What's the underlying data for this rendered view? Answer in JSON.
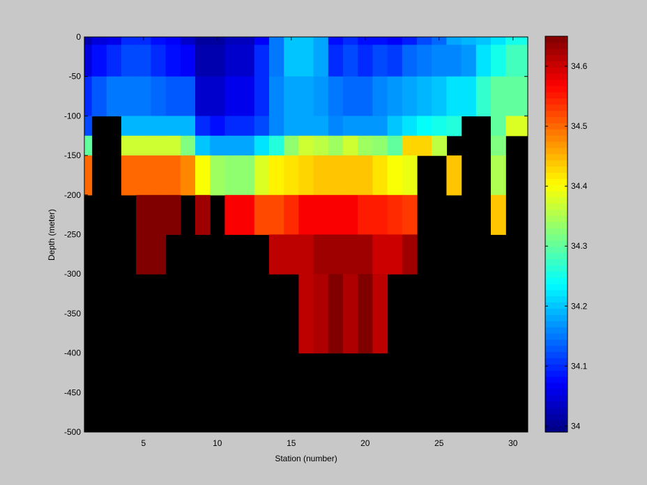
{
  "chart_data": {
    "type": "heatmap",
    "title": "",
    "xlabel": "Station (number)",
    "ylabel": "Depth (meter)",
    "xlim": [
      1,
      31
    ],
    "ylim": [
      -500,
      0
    ],
    "x_ticks": [
      5,
      10,
      15,
      20,
      25,
      30
    ],
    "y_ticks": [
      0,
      -50,
      -100,
      -150,
      -200,
      -250,
      -300,
      -350,
      -400,
      -450,
      -500
    ],
    "stations": [
      1,
      2,
      3,
      4,
      5,
      6,
      7,
      8,
      9,
      10,
      11,
      12,
      13,
      14,
      15,
      16,
      17,
      18,
      19,
      20,
      21,
      22,
      23,
      24,
      25,
      26,
      27,
      28,
      29,
      30
    ],
    "depths": [
      -5,
      -25,
      -75,
      -125,
      -175,
      -225,
      -275,
      -325,
      -375
    ],
    "background_color": "#000000",
    "colorbar": {
      "range": [
        33.99,
        34.65
      ],
      "ticks": [
        34,
        34.1,
        34.2,
        34.3,
        34.4,
        34.5,
        34.6
      ],
      "colormap": "jet-like"
    },
    "values": [
      [
        34.02,
        34.05,
        34.06,
        34.1,
        34.1,
        34.08,
        34.07,
        34.04,
        34.01,
        34.01,
        34.03,
        34.03,
        34.07,
        34.15,
        34.2,
        34.2,
        34.18,
        34.08,
        34.1,
        34.08,
        34.08,
        34.07,
        34.09,
        34.12,
        34.14,
        34.18,
        34.19,
        34.2,
        34.22,
        34.25
      ],
      [
        34.05,
        34.08,
        34.1,
        34.12,
        34.12,
        34.1,
        34.08,
        34.07,
        34.02,
        34.02,
        34.04,
        34.04,
        34.1,
        34.15,
        34.2,
        34.2,
        34.18,
        34.1,
        34.12,
        34.1,
        34.12,
        34.11,
        34.14,
        34.15,
        34.16,
        34.16,
        34.17,
        34.22,
        34.25,
        34.28
      ],
      [
        34.1,
        34.13,
        34.15,
        34.15,
        34.15,
        34.14,
        34.13,
        34.13,
        34.04,
        34.04,
        34.06,
        34.06,
        34.1,
        34.16,
        34.18,
        34.18,
        34.17,
        34.15,
        34.14,
        34.14,
        34.16,
        34.17,
        34.18,
        34.19,
        34.2,
        34.22,
        34.22,
        34.27,
        34.3,
        34.3
      ],
      [
        34.12,
        null,
        null,
        34.19,
        34.19,
        34.19,
        34.19,
        34.19,
        34.1,
        34.08,
        34.1,
        34.1,
        34.12,
        34.16,
        34.18,
        34.18,
        34.18,
        34.16,
        34.17,
        34.17,
        34.17,
        34.2,
        34.22,
        34.24,
        34.25,
        34.26,
        null,
        null,
        34.3,
        34.38
      ],
      [
        34.3,
        null,
        null,
        34.37,
        34.37,
        34.37,
        34.37,
        34.32,
        34.2,
        34.18,
        34.18,
        34.18,
        34.22,
        34.26,
        34.33,
        34.37,
        34.36,
        34.34,
        34.37,
        34.34,
        34.33,
        34.3,
        34.43,
        34.43,
        34.36,
        null,
        null,
        null,
        34.32,
        null
      ],
      [
        34.5,
        null,
        null,
        34.5,
        34.5,
        34.5,
        34.5,
        34.48,
        34.4,
        34.34,
        34.33,
        34.33,
        34.38,
        34.41,
        34.42,
        34.43,
        34.44,
        34.44,
        34.44,
        34.44,
        34.42,
        34.4,
        34.39,
        null,
        null,
        34.44,
        null,
        null,
        34.35,
        null
      ],
      [
        null,
        null,
        null,
        null,
        34.65,
        34.65,
        34.65,
        null,
        34.63,
        null,
        34.57,
        34.57,
        34.52,
        34.52,
        34.54,
        34.57,
        34.57,
        34.57,
        34.57,
        34.55,
        34.55,
        34.54,
        34.53,
        null,
        null,
        null,
        null,
        null,
        34.44,
        null
      ],
      [
        null,
        null,
        null,
        null,
        34.65,
        34.65,
        null,
        null,
        null,
        null,
        null,
        null,
        null,
        34.61,
        34.61,
        34.61,
        34.63,
        34.63,
        34.63,
        34.63,
        34.6,
        34.6,
        34.63,
        null,
        null,
        null,
        null,
        null,
        null,
        null
      ],
      [
        null,
        null,
        null,
        null,
        null,
        null,
        null,
        null,
        null,
        null,
        null,
        null,
        null,
        null,
        null,
        34.61,
        34.62,
        34.65,
        34.62,
        34.65,
        34.61,
        null,
        null,
        null,
        null,
        null,
        null,
        null,
        null,
        null
      ]
    ]
  }
}
